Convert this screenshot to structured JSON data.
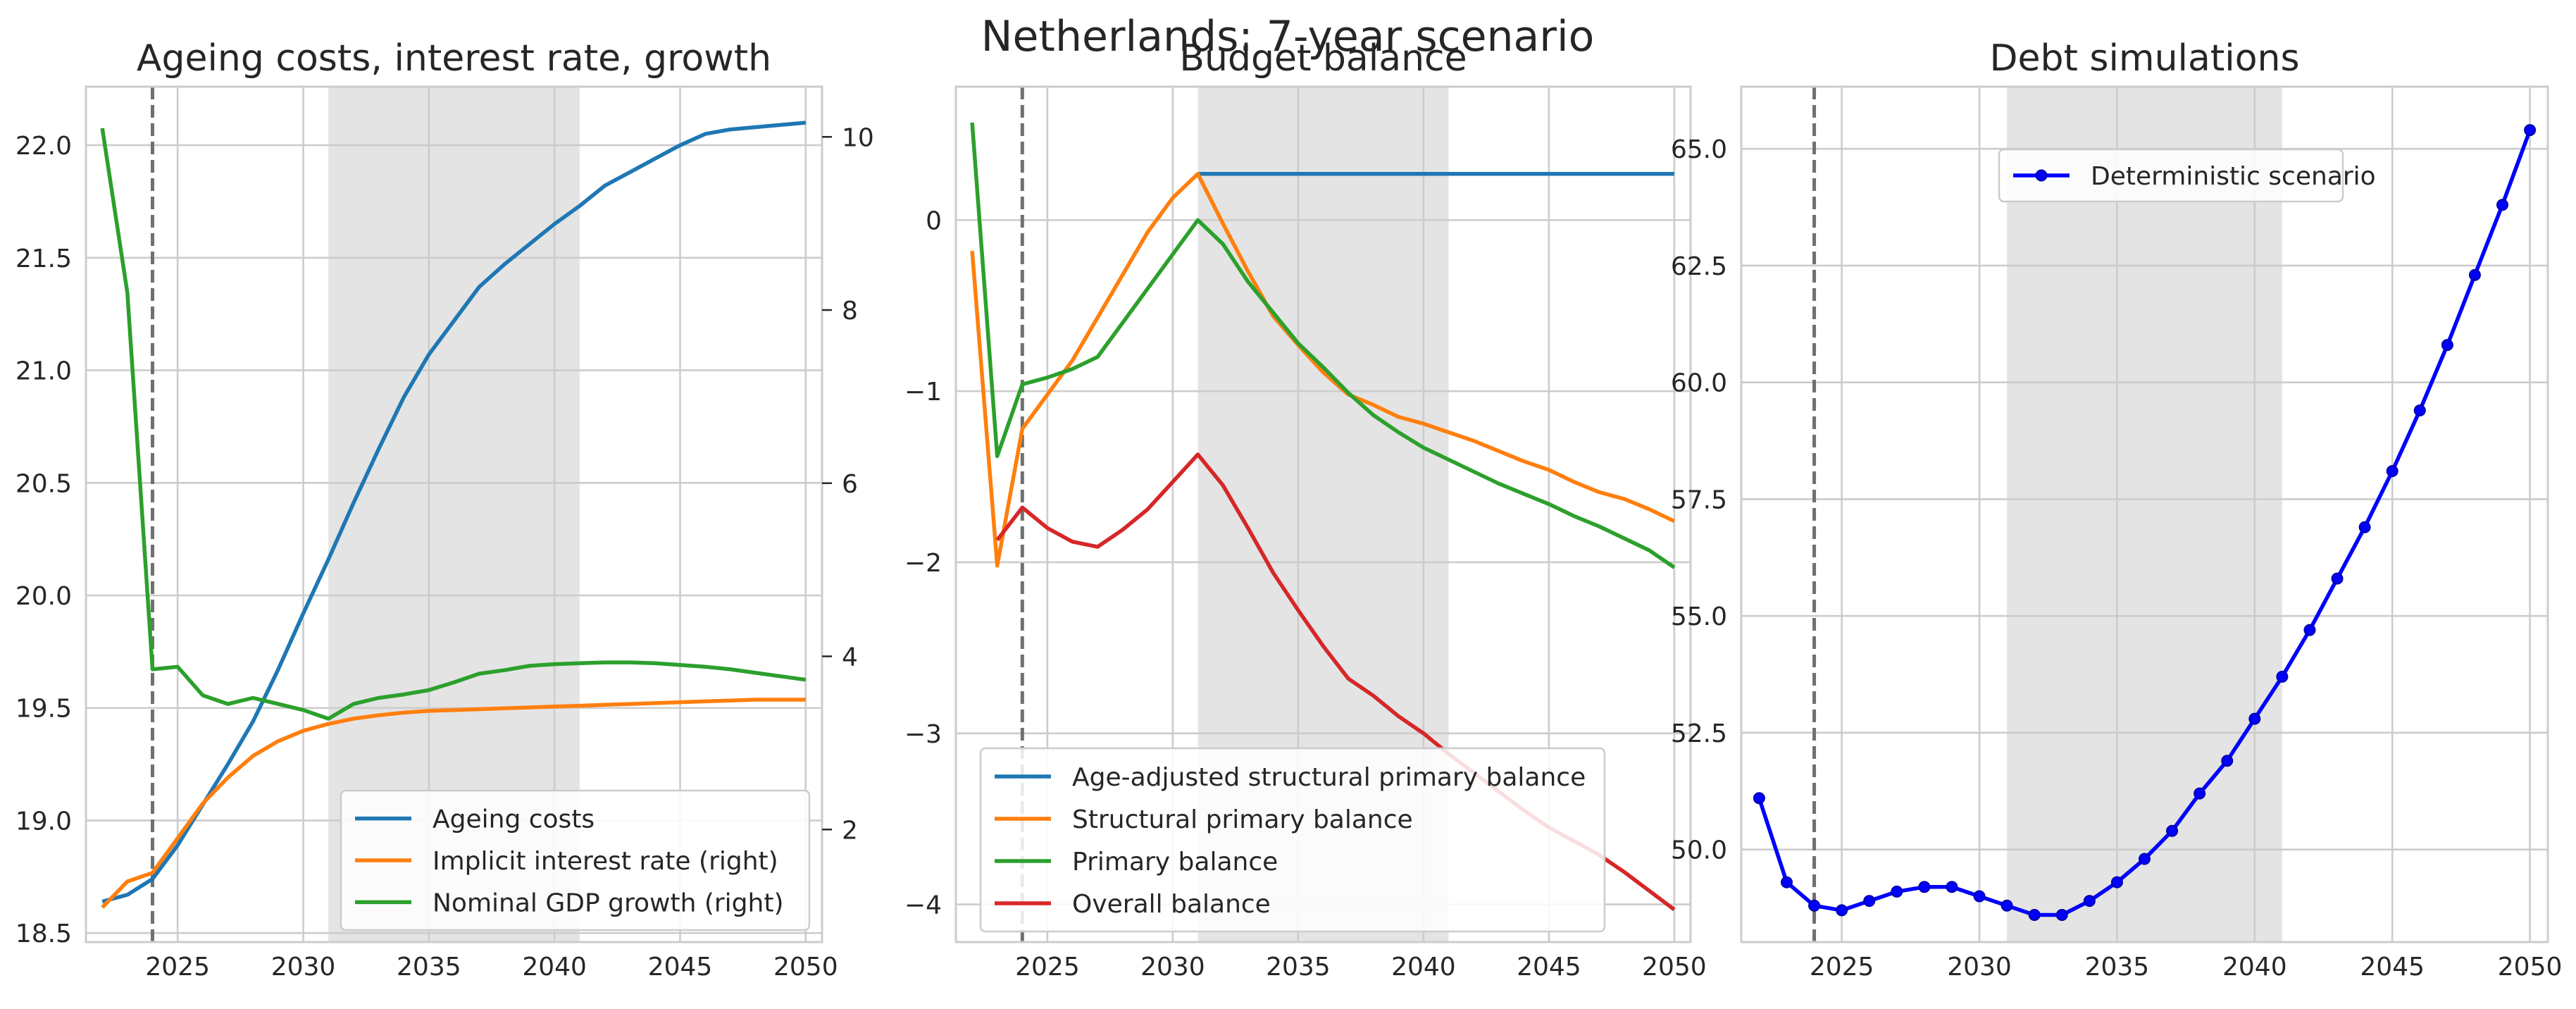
{
  "figure": {
    "suptitle": "Netherlands: 7-year scenario"
  },
  "chart_data": [
    {
      "type": "line",
      "title": "Ageing costs, interest rate, growth",
      "xlabel": "",
      "ylabel": "",
      "x": [
        2022,
        2023,
        2024,
        2025,
        2026,
        2027,
        2028,
        2029,
        2030,
        2031,
        2032,
        2033,
        2034,
        2035,
        2036,
        2037,
        2038,
        2039,
        2040,
        2041,
        2042,
        2043,
        2044,
        2045,
        2046,
        2047,
        2048,
        2049,
        2050
      ],
      "xlim": [
        2021.35,
        2050.65
      ],
      "xticks": [
        2025,
        2030,
        2035,
        2040,
        2045,
        2050
      ],
      "ylim": [
        18.46,
        22.26
      ],
      "yticks": [
        18.5,
        19.0,
        19.5,
        20.0,
        20.5,
        21.0,
        21.5,
        22.0
      ],
      "yticklabels": [
        "18.5",
        "19.0",
        "19.5",
        "20.0",
        "20.5",
        "21.0",
        "21.5",
        "22.0"
      ],
      "y2lim": [
        0.7,
        10.58
      ],
      "y2ticks": [
        2,
        4,
        6,
        8,
        10
      ],
      "y2ticklabels": [
        "2",
        "4",
        "6",
        "8",
        "10"
      ],
      "shaded_region": [
        2031,
        2041
      ],
      "vline": 2024,
      "legend_loc": "lower right",
      "series": [
        {
          "name": "Ageing costs",
          "axis": "left",
          "color": "#1f77b4",
          "values": [
            18.64,
            18.67,
            18.74,
            18.89,
            19.07,
            19.25,
            19.44,
            19.67,
            19.92,
            20.16,
            20.41,
            20.65,
            20.88,
            21.07,
            21.22,
            21.37,
            21.47,
            21.56,
            21.65,
            21.73,
            21.82,
            21.88,
            21.94,
            22.0,
            22.05,
            22.07,
            22.08,
            22.09,
            22.1
          ]
        },
        {
          "name": "Implicit interest rate (right)",
          "axis": "right",
          "color": "#ff7f0e",
          "values": [
            1.1,
            1.4,
            1.5,
            1.9,
            2.3,
            2.6,
            2.85,
            3.02,
            3.14,
            3.22,
            3.28,
            3.32,
            3.35,
            3.37,
            3.38,
            3.39,
            3.4,
            3.41,
            3.42,
            3.43,
            3.44,
            3.45,
            3.46,
            3.47,
            3.48,
            3.49,
            3.5,
            3.5,
            3.5
          ]
        },
        {
          "name": "Nominal GDP growth (right)",
          "axis": "right",
          "color": "#2ca02c",
          "values": [
            10.1,
            8.2,
            3.85,
            3.88,
            3.55,
            3.45,
            3.52,
            3.45,
            3.38,
            3.28,
            3.45,
            3.52,
            3.56,
            3.61,
            3.7,
            3.8,
            3.84,
            3.89,
            3.91,
            3.92,
            3.93,
            3.93,
            3.92,
            3.9,
            3.88,
            3.85,
            3.81,
            3.77,
            3.73
          ]
        }
      ]
    },
    {
      "type": "line",
      "title": "Budget balance",
      "xlabel": "",
      "ylabel": "",
      "x": [
        2022,
        2023,
        2024,
        2025,
        2026,
        2027,
        2028,
        2029,
        2030,
        2031,
        2032,
        2033,
        2034,
        2035,
        2036,
        2037,
        2038,
        2039,
        2040,
        2041,
        2042,
        2043,
        2044,
        2045,
        2046,
        2047,
        2048,
        2049,
        2050
      ],
      "xlim": [
        2021.35,
        2050.65
      ],
      "xticks": [
        2025,
        2030,
        2035,
        2040,
        2045,
        2050
      ],
      "ylim": [
        -4.22,
        0.78
      ],
      "yticks": [
        -4,
        -3,
        -2,
        -1,
        0
      ],
      "yticklabels": [
        "−4",
        "−3",
        "−2",
        "−1",
        "0"
      ],
      "shaded_region": [
        2031,
        2041
      ],
      "vline": 2024,
      "legend_loc": "lower left",
      "series": [
        {
          "name": "Age-adjusted structural primary balance",
          "color": "#1f77b4",
          "values": [
            null,
            null,
            null,
            null,
            null,
            null,
            null,
            null,
            null,
            0.27,
            0.27,
            0.27,
            0.27,
            0.27,
            0.27,
            0.27,
            0.27,
            0.27,
            0.27,
            0.27,
            0.27,
            0.27,
            0.27,
            0.27,
            0.27,
            0.27,
            0.27,
            0.27,
            0.27
          ]
        },
        {
          "name": "Structural primary balance",
          "color": "#ff7f0e",
          "values": [
            -0.18,
            -2.02,
            -1.22,
            -1.02,
            -0.82,
            -0.57,
            -0.32,
            -0.07,
            0.13,
            0.27,
            -0.02,
            -0.3,
            -0.56,
            -0.73,
            -0.89,
            -1.02,
            -1.08,
            -1.15,
            -1.19,
            -1.24,
            -1.29,
            -1.35,
            -1.41,
            -1.46,
            -1.53,
            -1.59,
            -1.63,
            -1.69,
            -1.76
          ]
        },
        {
          "name": "Primary balance",
          "color": "#2ca02c",
          "values": [
            0.57,
            -1.38,
            -0.96,
            -0.92,
            -0.87,
            -0.8,
            -0.6,
            -0.4,
            -0.2,
            0.0,
            -0.14,
            -0.36,
            -0.54,
            -0.72,
            -0.86,
            -1.01,
            -1.14,
            -1.24,
            -1.33,
            -1.4,
            -1.47,
            -1.54,
            -1.6,
            -1.66,
            -1.73,
            -1.79,
            -1.86,
            -1.93,
            -2.03
          ]
        },
        {
          "name": "Overall balance",
          "color": "#d62728",
          "values": [
            null,
            -1.87,
            -1.68,
            -1.8,
            -1.88,
            -1.91,
            -1.81,
            -1.69,
            -1.53,
            -1.37,
            -1.55,
            -1.8,
            -2.06,
            -2.28,
            -2.49,
            -2.68,
            -2.78,
            -2.9,
            -3.0,
            -3.12,
            -3.23,
            -3.34,
            -3.45,
            -3.55,
            -3.63,
            -3.71,
            -3.81,
            -3.92,
            -4.03
          ]
        }
      ]
    },
    {
      "type": "line",
      "title": "Debt simulations",
      "xlabel": "",
      "ylabel": "",
      "x": [
        2022,
        2023,
        2024,
        2025,
        2026,
        2027,
        2028,
        2029,
        2030,
        2031,
        2032,
        2033,
        2034,
        2035,
        2036,
        2037,
        2038,
        2039,
        2040,
        2041,
        2042,
        2043,
        2044,
        2045,
        2046,
        2047,
        2048,
        2049,
        2050
      ],
      "xlim": [
        2021.35,
        2050.65
      ],
      "xticks": [
        2025,
        2030,
        2035,
        2040,
        2045,
        2050
      ],
      "ylim": [
        48.02,
        66.33
      ],
      "yticks": [
        50.0,
        52.5,
        55.0,
        57.5,
        60.0,
        62.5,
        65.0
      ],
      "yticklabels": [
        "50.0",
        "52.5",
        "55.0",
        "57.5",
        "60.0",
        "62.5",
        "65.0"
      ],
      "shaded_region": [
        2031,
        2041
      ],
      "vline": 2024,
      "legend_loc": "upper center",
      "series": [
        {
          "name": "Deterministic scenario",
          "color": "#0000ff",
          "markers": true,
          "values": [
            51.1,
            49.3,
            48.8,
            48.7,
            48.9,
            49.1,
            49.2,
            49.2,
            49.0,
            48.8,
            48.6,
            48.6,
            48.9,
            49.3,
            49.8,
            50.4,
            51.2,
            51.9,
            52.8,
            53.7,
            54.7,
            55.8,
            56.9,
            58.1,
            59.4,
            60.8,
            62.3,
            63.8,
            65.4
          ]
        }
      ]
    }
  ]
}
